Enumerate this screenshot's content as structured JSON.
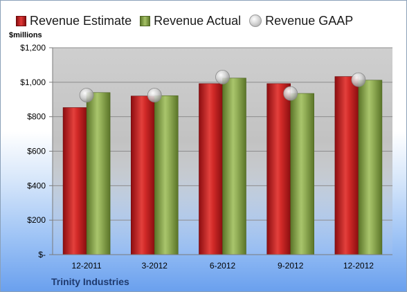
{
  "legend": {
    "estimate_label": "Revenue Estimate",
    "actual_label": "Revenue Actual",
    "gaap_label": "Revenue GAAP"
  },
  "unit_label": "$millions",
  "company": "Trinity Industries",
  "colors": {
    "estimate": "#c8191c",
    "actual": "#8aa650",
    "gaap": "#c8c8c8"
  },
  "chart_data": {
    "type": "bar",
    "categories": [
      "12-2011",
      "3-2012",
      "6-2012",
      "9-2012",
      "12-2012"
    ],
    "series": [
      {
        "name": "Revenue Estimate",
        "values": [
          853,
          920,
          992,
          992,
          1033
        ]
      },
      {
        "name": "Revenue Actual",
        "values": [
          940,
          922,
          1024,
          935,
          1012
        ]
      },
      {
        "name": "Revenue GAAP",
        "values": [
          925,
          925,
          1030,
          935,
          1015
        ],
        "style": "marker"
      }
    ],
    "ylabel": "$millions",
    "ylim": [
      0,
      1200
    ],
    "yticks": [
      0,
      200,
      400,
      600,
      800,
      1000,
      1200
    ],
    "ytick_labels": [
      "$-",
      "$200",
      "$400",
      "$600",
      "$800",
      "$1,000",
      "$1,200"
    ],
    "grid": true,
    "legend_position": "top"
  }
}
